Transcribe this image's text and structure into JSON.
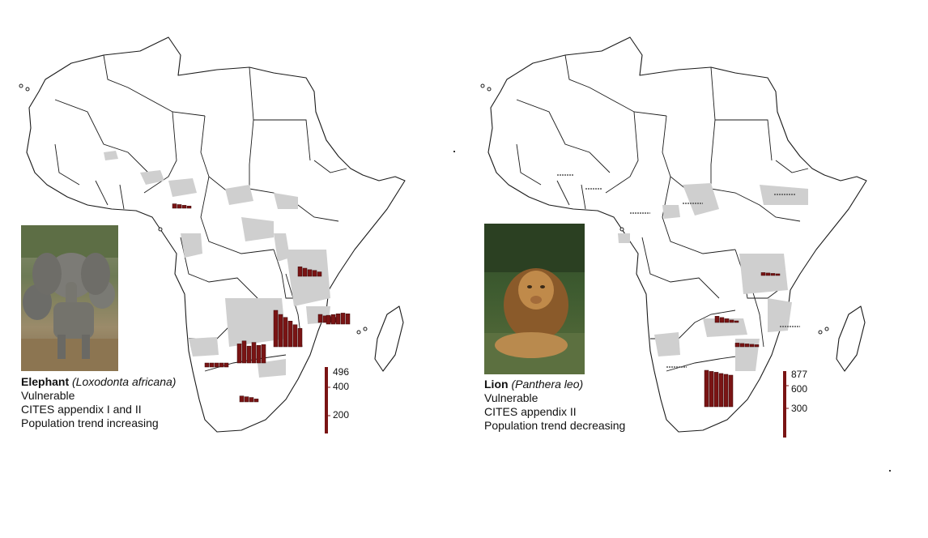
{
  "colors": {
    "bar": "#7a1414",
    "range": "#cfcfcf",
    "map_outline": "#1b1b1b"
  },
  "panels": [
    {
      "species": "Elephant",
      "scientific": "(Loxodonta africana)",
      "lines": [
        "Vulnerable",
        "CITES appendix I and II",
        "Population trend increasing"
      ],
      "scale": {
        "max": "496",
        "mid": "400",
        "low": "200"
      },
      "photo_icon": "elephant-photo"
    },
    {
      "species": "Lion",
      "scientific": "(Panthera leo)",
      "lines": [
        "Vulnerable",
        "CITES appendix II",
        "Population trend decreasing"
      ],
      "scale": {
        "max": "877",
        "mid": "600",
        "low": "300"
      },
      "photo_icon": "lion-photo"
    }
  ],
  "chart_data": [
    {
      "type": "bar",
      "title": "",
      "series": [
        {
          "values": [
            60,
            50,
            40,
            30
          ]
        },
        {
          "values": [
            130,
            110,
            90,
            80,
            60
          ]
        },
        {
          "values": [
            55,
            55,
            55,
            55,
            55
          ]
        },
        {
          "values": [
            260,
            300,
            230,
            280,
            240,
            250
          ]
        },
        {
          "values": [
            496,
            440,
            400,
            350,
            300,
            250
          ]
        },
        {
          "values": [
            110,
            90,
            80,
            70
          ]
        },
        {
          "values": [
            80,
            70,
            60,
            40
          ]
        },
        {
          "values": [
            120,
            130,
            140,
            150,
            140
          ]
        }
      ],
      "ylim": [
        0,
        496
      ]
    },
    {
      "type": "bar",
      "title": "",
      "series": [
        {
          "values": [
            150,
            120,
            90,
            60,
            30
          ]
        },
        {
          "values": [
            90,
            80,
            70,
            60,
            50
          ]
        },
        {
          "values": [
            70,
            60,
            50,
            40
          ]
        },
        {
          "values": [
            877,
            850,
            830,
            800,
            780,
            760
          ]
        }
      ],
      "ylim": [
        0,
        877
      ]
    }
  ]
}
